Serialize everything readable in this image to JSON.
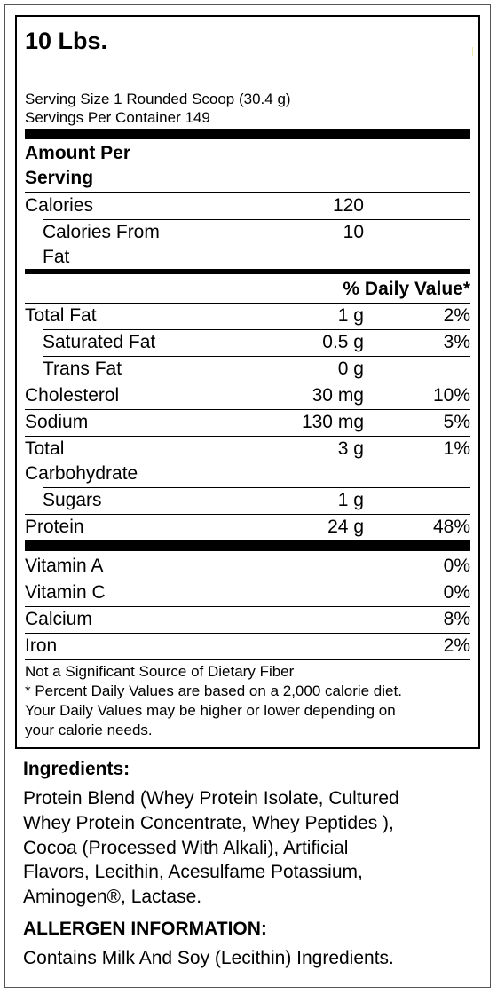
{
  "header": {
    "title": "10 Lbs."
  },
  "serving": {
    "size": "Serving Size 1 Rounded Scoop (30.4 g)",
    "per_container": "Servings Per Container 149"
  },
  "amount_heading_1": "Amount Per",
  "amount_heading_2": "Serving",
  "calories": {
    "label": "Calories",
    "value": "120"
  },
  "calories_fat": {
    "label_1": "Calories From",
    "label_2": "Fat",
    "value": "10"
  },
  "dv_header": "% Daily Value*",
  "nutrients": {
    "total_fat": {
      "label": "Total Fat",
      "amount": "1 g",
      "dv": "2%"
    },
    "saturated_fat": {
      "label": "Saturated Fat",
      "amount": "0.5 g",
      "dv": "3%"
    },
    "trans_fat": {
      "label": "Trans Fat",
      "amount": "0 g",
      "dv": ""
    },
    "cholesterol": {
      "label": "Cholesterol",
      "amount": "30 mg",
      "dv": "10%"
    },
    "sodium": {
      "label": "Sodium",
      "amount": "130 mg",
      "dv": "5%"
    },
    "carbohydrate": {
      "label_1": "Total",
      "label_2": "Carbohydrate",
      "amount": "3 g",
      "dv": "1%"
    },
    "sugars": {
      "label": "Sugars",
      "amount": "1 g",
      "dv": ""
    },
    "protein": {
      "label": "Protein",
      "amount": "24 g",
      "dv": "48%"
    }
  },
  "vitamins": {
    "vitamin_a": {
      "label": "Vitamin A",
      "dv": "0%"
    },
    "vitamin_c": {
      "label": "Vitamin C",
      "dv": "0%"
    },
    "calcium": {
      "label": "Calcium",
      "dv": "8%"
    },
    "iron": {
      "label": "Iron",
      "dv": "2%"
    }
  },
  "footnotes": {
    "line1": "Not a Significant Source of Dietary Fiber",
    "line2": "* Percent Daily Values are based on a 2,000 calorie diet.",
    "line3": "Your Daily Values may be higher or lower depending on",
    "line4": "your calorie needs."
  },
  "ingredients": {
    "heading": "Ingredients:",
    "line1": "Protein Blend (Whey Protein Isolate, Cultured",
    "line2": "Whey Protein Concentrate, Whey Peptides ),",
    "line3": "Cocoa (Processed With Alkali), Artificial",
    "line4": "Flavors, Lecithin, Acesulfame Potassium,",
    "line5": "Aminogen®, Lactase."
  },
  "allergen": {
    "heading": "ALLERGEN INFORMATION:",
    "text": "Contains Milk And Soy (Lecithin) Ingredients."
  }
}
